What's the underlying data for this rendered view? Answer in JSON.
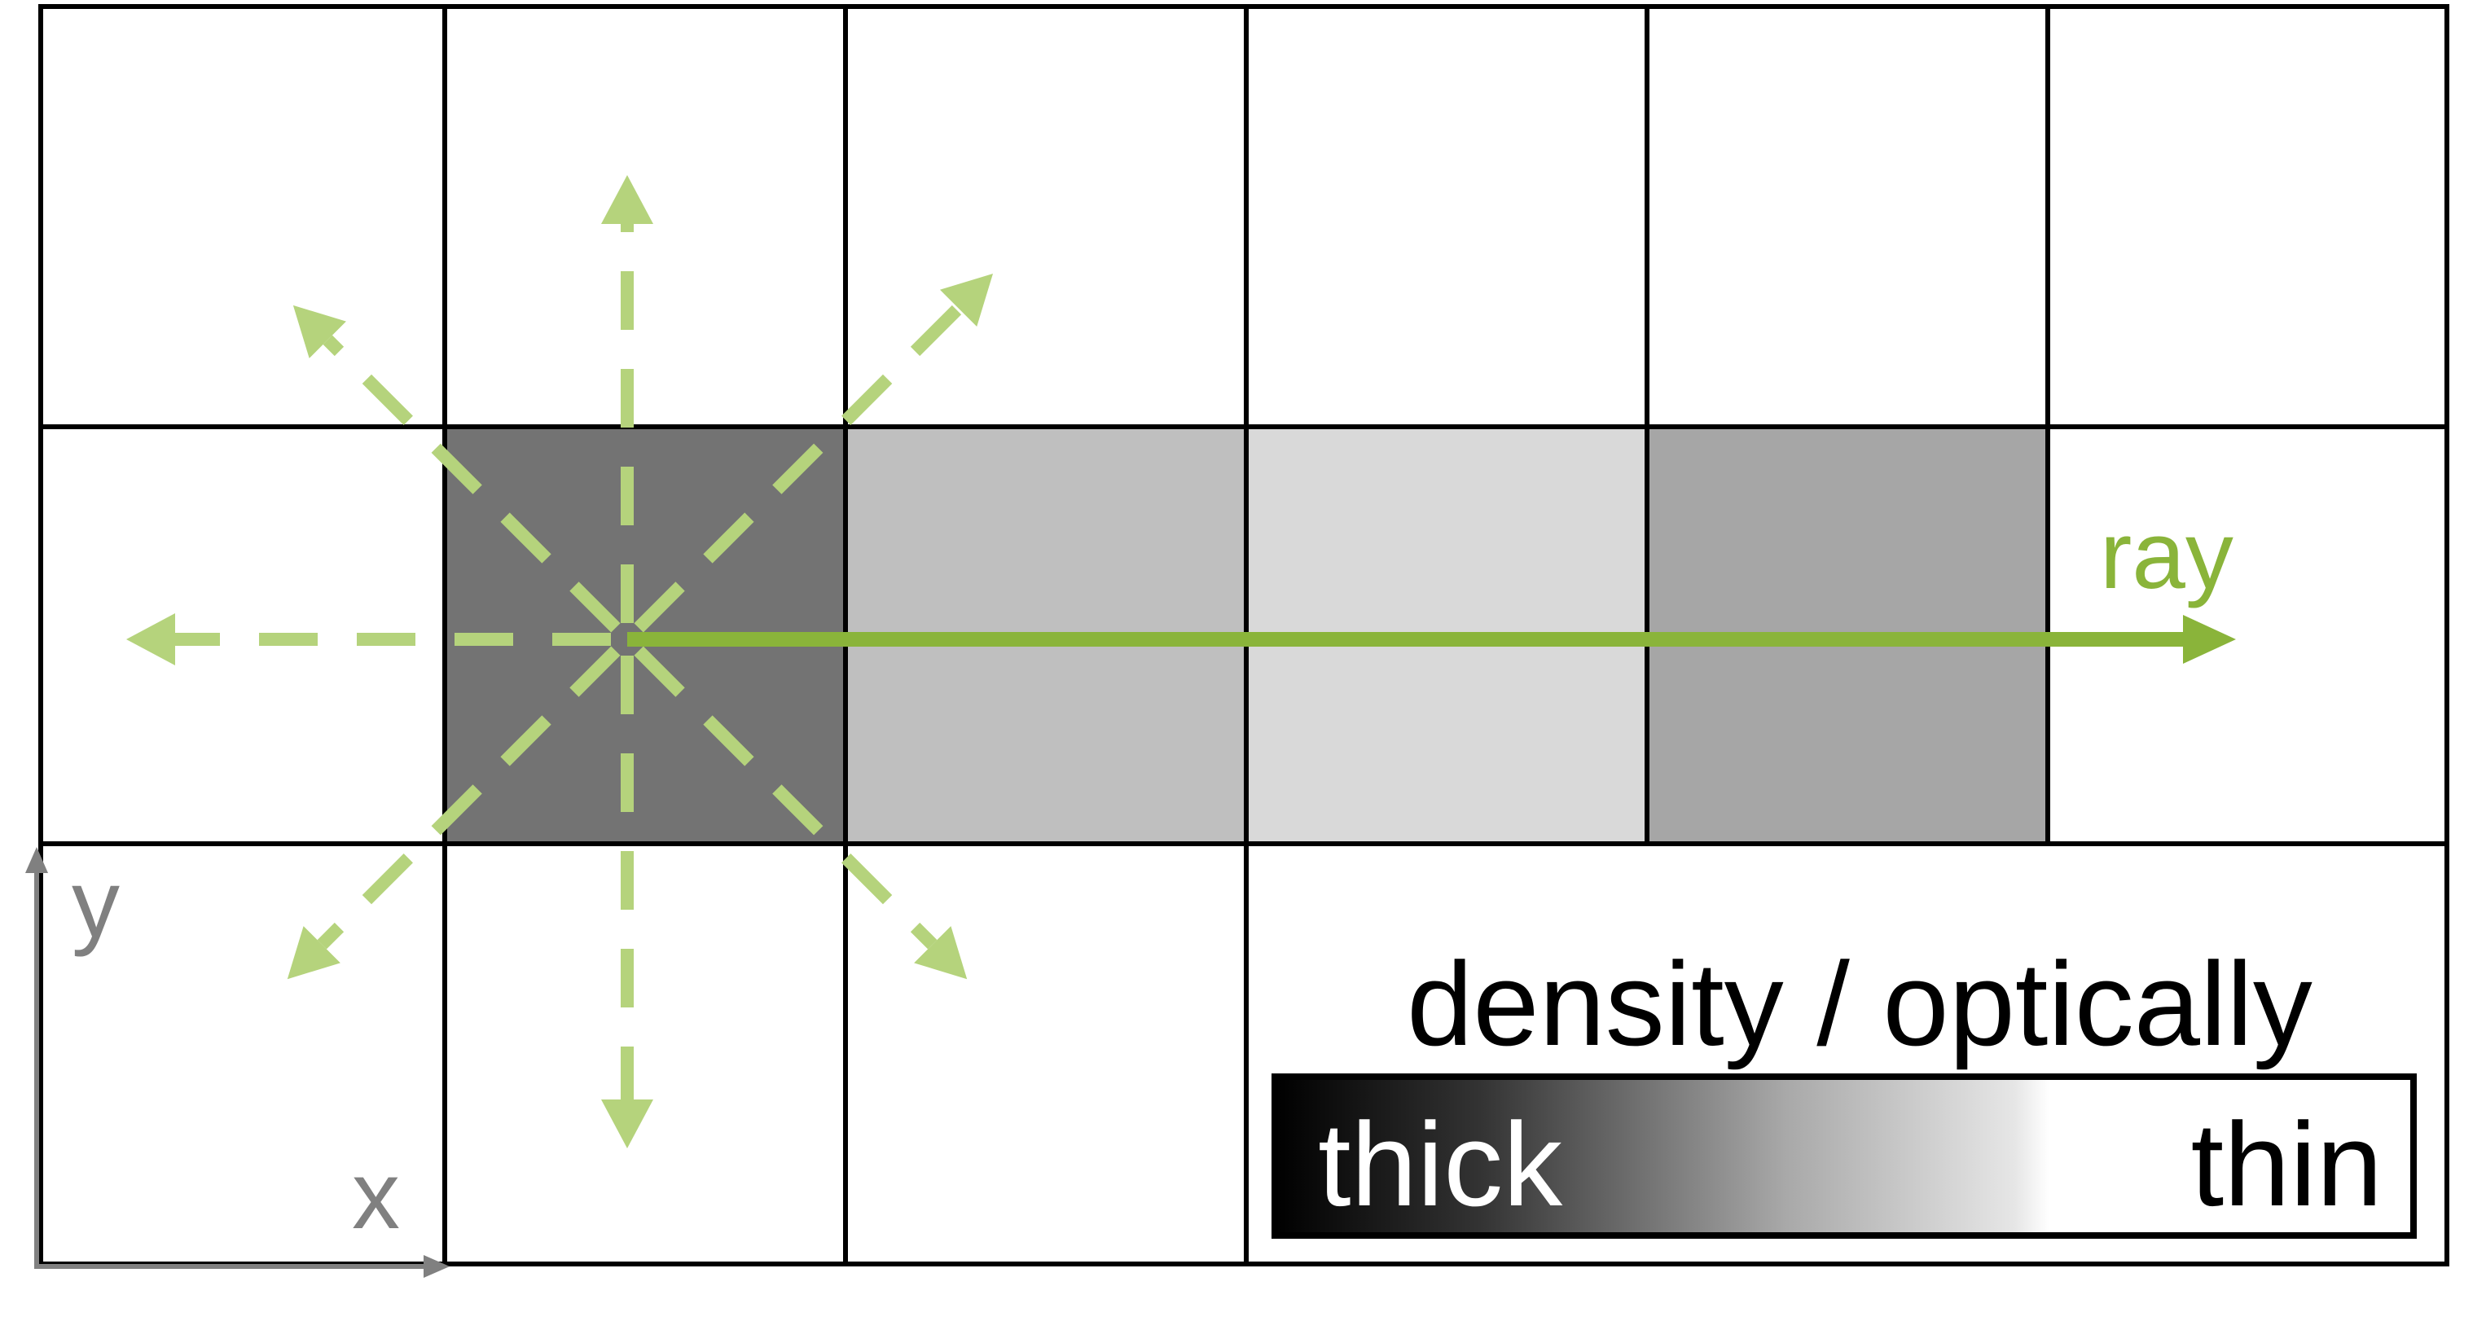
{
  "labels": {
    "ray": "ray",
    "axis_x": "x",
    "axis_y": "y",
    "legend_title": "density / optically",
    "legend_left": "thick",
    "legend_right": "thin"
  },
  "colors": {
    "ray_green": "#8ab43a",
    "dash_green": "#b5d37c",
    "grid_line": "#000000",
    "axis_gray": "#808080",
    "cell_dark": "#737373",
    "cell_light": "#bfbfbf",
    "cell_lighter": "#d9d9d9",
    "cell_mid": "#a6a6a6"
  },
  "grid": {
    "columns": 6,
    "rows": 3,
    "shaded_cells": [
      {
        "row": 1,
        "col": 1,
        "shade": "dark"
      },
      {
        "row": 1,
        "col": 2,
        "shade": "light"
      },
      {
        "row": 1,
        "col": 3,
        "shade": "lighter"
      },
      {
        "row": 1,
        "col": 4,
        "shade": "mid"
      }
    ]
  },
  "emission": {
    "directions": [
      "up",
      "up-right",
      "right",
      "down-right",
      "down",
      "down-left",
      "left",
      "up-left"
    ]
  }
}
